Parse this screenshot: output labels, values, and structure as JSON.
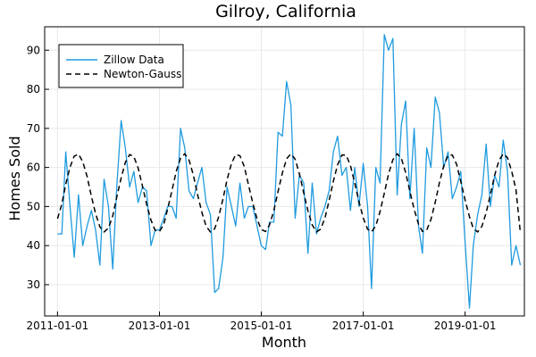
{
  "chart_data": {
    "type": "line",
    "title": "Gilroy, California",
    "xlabel": "Month",
    "ylabel": "Homes Sold",
    "x_ticks": [
      "2011-01-01",
      "2013-01-01",
      "2015-01-01",
      "2017-01-01",
      "2019-01-01"
    ],
    "y_ticks": [
      30,
      40,
      50,
      60,
      70,
      80,
      90
    ],
    "xlim": [
      "2010-10-01",
      "2020-03-01"
    ],
    "ylim": [
      22,
      96
    ],
    "grid": true,
    "legend_position": "top-left",
    "series": [
      {
        "name": "Zillow Data",
        "style": "solid",
        "color": "#1f9bdf",
        "values": [
          [
            "2011-01-01",
            43
          ],
          [
            "2011-02-01",
            43
          ],
          [
            "2011-03-01",
            64
          ],
          [
            "2011-04-01",
            50
          ],
          [
            "2011-05-01",
            37
          ],
          [
            "2011-06-01",
            53
          ],
          [
            "2011-07-01",
            40
          ],
          [
            "2011-08-01",
            45
          ],
          [
            "2011-09-01",
            49
          ],
          [
            "2011-10-01",
            44
          ],
          [
            "2011-11-01",
            35
          ],
          [
            "2011-12-01",
            57
          ],
          [
            "2012-01-01",
            50
          ],
          [
            "2012-02-01",
            34
          ],
          [
            "2012-03-01",
            55
          ],
          [
            "2012-04-01",
            72
          ],
          [
            "2012-05-01",
            65
          ],
          [
            "2012-06-01",
            55
          ],
          [
            "2012-07-01",
            59
          ],
          [
            "2012-08-01",
            51
          ],
          [
            "2012-09-01",
            55
          ],
          [
            "2012-10-01",
            54
          ],
          [
            "2012-11-01",
            40
          ],
          [
            "2012-12-01",
            44
          ],
          [
            "2013-01-01",
            44
          ],
          [
            "2013-02-01",
            47
          ],
          [
            "2013-03-01",
            50
          ],
          [
            "2013-04-01",
            50
          ],
          [
            "2013-05-01",
            47
          ],
          [
            "2013-06-01",
            70
          ],
          [
            "2013-07-01",
            65
          ],
          [
            "2013-08-01",
            54
          ],
          [
            "2013-09-01",
            52
          ],
          [
            "2013-10-01",
            56
          ],
          [
            "2013-11-01",
            60
          ],
          [
            "2013-12-01",
            51
          ],
          [
            "2014-01-01",
            48
          ],
          [
            "2014-02-01",
            28
          ],
          [
            "2014-03-01",
            29
          ],
          [
            "2014-04-01",
            37
          ],
          [
            "2014-05-01",
            55
          ],
          [
            "2014-06-01",
            50
          ],
          [
            "2014-07-01",
            45
          ],
          [
            "2014-08-01",
            56
          ],
          [
            "2014-09-01",
            47
          ],
          [
            "2014-10-01",
            50
          ],
          [
            "2014-11-01",
            50
          ],
          [
            "2014-12-01",
            45
          ],
          [
            "2015-01-01",
            40
          ],
          [
            "2015-02-01",
            39
          ],
          [
            "2015-03-01",
            46
          ],
          [
            "2015-04-01",
            46
          ],
          [
            "2015-05-01",
            69
          ],
          [
            "2015-06-01",
            68
          ],
          [
            "2015-07-01",
            82
          ],
          [
            "2015-08-01",
            76
          ],
          [
            "2015-09-01",
            47
          ],
          [
            "2015-10-01",
            58
          ],
          [
            "2015-11-01",
            56
          ],
          [
            "2015-12-01",
            38
          ],
          [
            "2016-01-01",
            56
          ],
          [
            "2016-02-01",
            43
          ],
          [
            "2016-03-01",
            47
          ],
          [
            "2016-04-01",
            50
          ],
          [
            "2016-05-01",
            54
          ],
          [
            "2016-06-01",
            64
          ],
          [
            "2016-07-01",
            68
          ],
          [
            "2016-08-01",
            58
          ],
          [
            "2016-09-01",
            60
          ],
          [
            "2016-10-01",
            49
          ],
          [
            "2016-11-01",
            60
          ],
          [
            "2016-12-01",
            50
          ],
          [
            "2017-01-01",
            61
          ],
          [
            "2017-02-01",
            50
          ],
          [
            "2017-03-01",
            29
          ],
          [
            "2017-04-01",
            60
          ],
          [
            "2017-05-01",
            56
          ],
          [
            "2017-06-01",
            94
          ],
          [
            "2017-07-01",
            90
          ],
          [
            "2017-08-01",
            93
          ],
          [
            "2017-09-01",
            53
          ],
          [
            "2017-10-01",
            71
          ],
          [
            "2017-11-01",
            77
          ],
          [
            "2017-12-01",
            52
          ],
          [
            "2018-01-01",
            70
          ],
          [
            "2018-02-01",
            45
          ],
          [
            "2018-03-01",
            38
          ],
          [
            "2018-04-01",
            65
          ],
          [
            "2018-05-01",
            60
          ],
          [
            "2018-06-01",
            78
          ],
          [
            "2018-07-01",
            74
          ],
          [
            "2018-08-01",
            60
          ],
          [
            "2018-09-01",
            64
          ],
          [
            "2018-10-01",
            52
          ],
          [
            "2018-11-01",
            55
          ],
          [
            "2018-12-01",
            59
          ],
          [
            "2019-01-01",
            41
          ],
          [
            "2019-02-01",
            24
          ],
          [
            "2019-03-01",
            40
          ],
          [
            "2019-04-01",
            48
          ],
          [
            "2019-05-01",
            53
          ],
          [
            "2019-06-01",
            66
          ],
          [
            "2019-07-01",
            50
          ],
          [
            "2019-08-01",
            58
          ],
          [
            "2019-09-01",
            55
          ],
          [
            "2019-10-01",
            67
          ],
          [
            "2019-11-01",
            59
          ],
          [
            "2019-12-01",
            35
          ],
          [
            "2020-01-01",
            40
          ],
          [
            "2020-02-01",
            35
          ]
        ]
      },
      {
        "name": "Newton-Gauss",
        "style": "dashed",
        "color": "#000000",
        "values": [
          [
            "2011-01-01",
            46.9
          ],
          [
            "2011-02-01",
            50.6
          ],
          [
            "2011-03-01",
            55.7
          ],
          [
            "2011-04-01",
            60.1
          ],
          [
            "2011-05-01",
            62.9
          ],
          [
            "2011-06-01",
            63.4
          ],
          [
            "2011-07-01",
            61.5
          ],
          [
            "2011-08-01",
            57.7
          ],
          [
            "2011-09-01",
            52.6
          ],
          [
            "2011-10-01",
            48.2
          ],
          [
            "2011-11-01",
            44.8
          ],
          [
            "2011-12-01",
            43.5
          ],
          [
            "2012-01-01",
            44.5
          ],
          [
            "2012-02-01",
            47.6
          ],
          [
            "2012-03-01",
            52.4
          ],
          [
            "2012-04-01",
            57.3
          ],
          [
            "2012-05-01",
            61.3
          ],
          [
            "2012-06-01",
            63.3
          ],
          [
            "2012-07-01",
            62.8
          ],
          [
            "2012-08-01",
            59.9
          ],
          [
            "2012-09-01",
            55.2
          ],
          [
            "2012-10-01",
            50.6
          ],
          [
            "2012-11-01",
            46.5
          ],
          [
            "2012-12-01",
            43.9
          ],
          [
            "2013-01-01",
            43.6
          ],
          [
            "2013-02-01",
            45.5
          ],
          [
            "2013-03-01",
            49.4
          ],
          [
            "2013-04-01",
            54.2
          ],
          [
            "2013-05-01",
            58.9
          ],
          [
            "2013-06-01",
            62.4
          ],
          [
            "2013-07-01",
            63.5
          ],
          [
            "2013-08-01",
            61.9
          ],
          [
            "2013-09-01",
            58.0
          ],
          [
            "2013-10-01",
            53.1
          ],
          [
            "2013-11-01",
            48.5
          ],
          [
            "2013-12-01",
            45.0
          ],
          [
            "2014-01-01",
            43.5
          ],
          [
            "2014-02-01",
            44.3
          ],
          [
            "2014-03-01",
            47.3
          ],
          [
            "2014-04-01",
            51.9
          ],
          [
            "2014-05-01",
            56.9
          ],
          [
            "2014-06-01",
            61.0
          ],
          [
            "2014-07-01",
            63.3
          ],
          [
            "2014-08-01",
            63.0
          ],
          [
            "2014-09-01",
            60.2
          ],
          [
            "2014-10-01",
            55.6
          ],
          [
            "2014-11-01",
            50.9
          ],
          [
            "2014-12-01",
            46.8
          ],
          [
            "2015-01-01",
            44.1
          ],
          [
            "2015-02-01",
            43.6
          ],
          [
            "2015-03-01",
            45.3
          ],
          [
            "2015-04-01",
            49.0
          ],
          [
            "2015-05-01",
            53.8
          ],
          [
            "2015-06-01",
            58.6
          ],
          [
            "2015-07-01",
            62.2
          ],
          [
            "2015-08-01",
            63.5
          ],
          [
            "2015-09-01",
            62.1
          ],
          [
            "2015-10-01",
            58.4
          ],
          [
            "2015-11-01",
            53.5
          ],
          [
            "2015-12-01",
            48.9
          ],
          [
            "2016-01-01",
            45.3
          ],
          [
            "2016-02-01",
            43.5
          ],
          [
            "2016-03-01",
            44.2
          ],
          [
            "2016-04-01",
            47.0
          ],
          [
            "2016-05-01",
            51.5
          ],
          [
            "2016-06-01",
            56.5
          ],
          [
            "2016-07-01",
            60.7
          ],
          [
            "2016-08-01",
            63.2
          ],
          [
            "2016-09-01",
            63.1
          ],
          [
            "2016-10-01",
            60.5
          ],
          [
            "2016-11-01",
            56.0
          ],
          [
            "2016-12-01",
            51.3
          ],
          [
            "2017-01-01",
            47.1
          ],
          [
            "2017-02-01",
            44.2
          ],
          [
            "2017-03-01",
            43.5
          ],
          [
            "2017-04-01",
            45.1
          ],
          [
            "2017-05-01",
            48.7
          ],
          [
            "2017-06-01",
            53.4
          ],
          [
            "2017-07-01",
            58.3
          ],
          [
            "2017-08-01",
            62.0
          ],
          [
            "2017-09-01",
            63.5
          ],
          [
            "2017-10-01",
            62.3
          ],
          [
            "2017-11-01",
            58.7
          ],
          [
            "2017-12-01",
            53.9
          ],
          [
            "2018-01-01",
            49.3
          ],
          [
            "2018-02-01",
            45.5
          ],
          [
            "2018-03-01",
            43.6
          ],
          [
            "2018-04-01",
            44.0
          ],
          [
            "2018-05-01",
            46.7
          ],
          [
            "2018-06-01",
            51.1
          ],
          [
            "2018-07-01",
            56.1
          ],
          [
            "2018-08-01",
            60.4
          ],
          [
            "2018-09-01",
            63.1
          ],
          [
            "2018-10-01",
            63.2
          ],
          [
            "2018-11-01",
            60.8
          ],
          [
            "2018-12-01",
            56.4
          ],
          [
            "2019-01-01",
            51.7
          ],
          [
            "2019-02-01",
            47.4
          ],
          [
            "2019-03-01",
            44.4
          ],
          [
            "2019-04-01",
            43.5
          ],
          [
            "2019-05-01",
            44.9
          ],
          [
            "2019-06-01",
            48.4
          ],
          [
            "2019-07-01",
            53.0
          ],
          [
            "2019-08-01",
            58.0
          ],
          [
            "2019-09-01",
            61.8
          ],
          [
            "2019-10-01",
            63.5
          ],
          [
            "2019-11-01",
            62.5
          ],
          [
            "2019-12-01",
            59.0
          ],
          [
            "2020-01-01",
            54.3
          ],
          [
            "2020-02-01",
            43.3
          ]
        ]
      }
    ]
  }
}
